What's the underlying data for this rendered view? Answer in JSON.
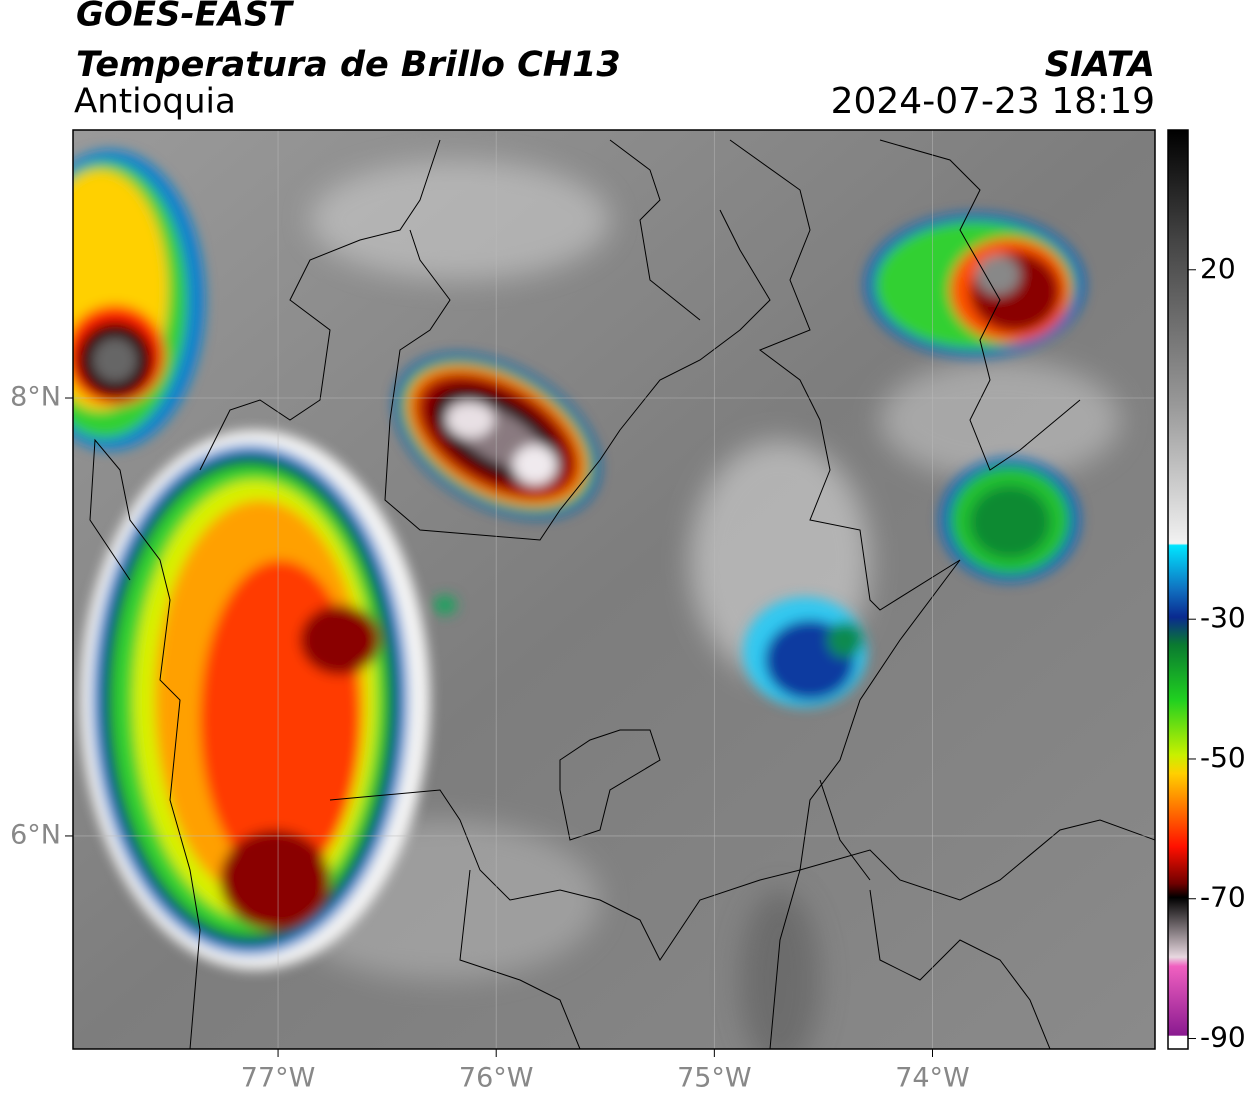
{
  "header": {
    "title": "GOES-EAST",
    "subtitle": "Temperatura de Brillo CH13",
    "region": "Antioquia",
    "source": "SIATA",
    "datetime": "2024-07-23 18:19"
  },
  "map": {
    "xlim": [
      -77.94,
      -72.98
    ],
    "ylim": [
      5.027,
      9.224
    ],
    "xticks": [
      {
        "value": -77,
        "label": "77°W"
      },
      {
        "value": -76,
        "label": "76°W"
      },
      {
        "value": -75,
        "label": "75°W"
      },
      {
        "value": -74,
        "label": "74°W"
      }
    ],
    "yticks": [
      {
        "value": 8,
        "label": "8°N"
      },
      {
        "value": 6,
        "label": "6°N"
      }
    ]
  },
  "colorbar": {
    "lim": [
      -91.5,
      40
    ],
    "ticks": [
      20,
      -30,
      -50,
      -70,
      -90
    ]
  }
}
